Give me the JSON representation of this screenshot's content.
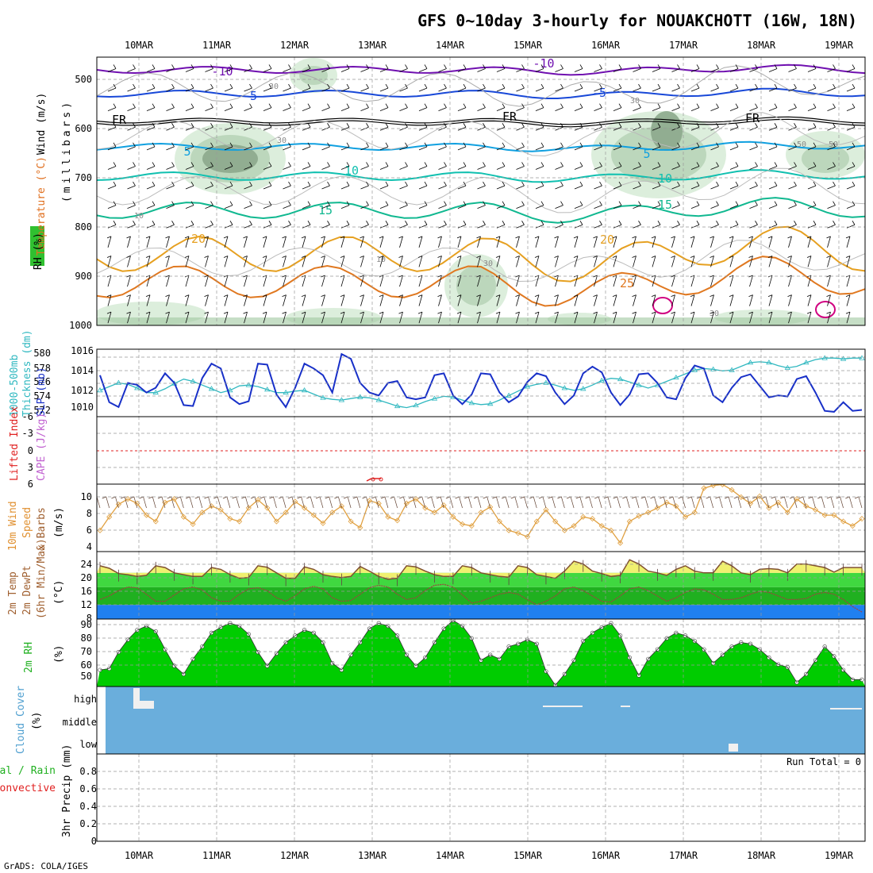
{
  "title": "GFS 0~10day 3-hourly for NOUAKCHOTT (16W, 18N)",
  "footer": "GrADS: COLA/IGES",
  "dates": [
    "10MAR",
    "11MAR",
    "12MAR",
    "13MAR",
    "14MAR",
    "15MAR",
    "16MAR",
    "17MAR",
    "18MAR",
    "19MAR"
  ],
  "colors": {
    "rh_light": "#d8ecd8",
    "rh_mid": "#b8d4b8",
    "rh_dark": "#8ca88c",
    "temp_warm": "#e6a020",
    "temp_hot": "#e07820",
    "temp_hotter": "#d00080",
    "temp_cold": "#7010b0",
    "temp_mid": "#1848d8",
    "temp_cool": "#10a0e0",
    "temp_teal": "#10c0b0",
    "slp": "#1830c8",
    "thickness": "#30b8c0",
    "wind10m": "#e0a040",
    "temp_fill_yellow": "#f0f070",
    "temp_fill_green": "#40d840",
    "temp_fill_dkgreen": "#20b020",
    "dewpt_fill": "#2080f0",
    "rh_green": "#00cc00",
    "cloud_blue": "#6aaedc",
    "li_red": "#e02020"
  },
  "panels": {
    "upper": {
      "ylabel_wind": "Wind (m/s)",
      "ylabel_temp": "Temperature (°C)",
      "ylabel_rh": "RH (%)",
      "ylabel_mb": "(millibars)",
      "levels": [
        "500",
        "600",
        "700",
        "800",
        "900",
        "1000"
      ],
      "contour_labels": {
        "t_m10": "-10",
        "t_m5": "-5",
        "t_fr": "FR",
        "t_5": "5",
        "t_10": "10",
        "t_15": "15",
        "t_20": "20",
        "t_25": "25",
        "rh_10": "10",
        "rh_30": "30",
        "rh_50": "50"
      }
    },
    "slp": {
      "ylabel_thick": "1000-500mb",
      "ylabel_thick2": "Thickness (dm)",
      "ylabel_slp": "SLP (mb)",
      "left_ticks": [
        "580",
        "578",
        "576",
        "574",
        "572"
      ],
      "right_ticks": [
        "1016",
        "1014",
        "1012",
        "1010"
      ]
    },
    "cape": {
      "ylabel_li": "Lifted Index",
      "ylabel_cape": "CAPE (J/kg)",
      "ticks": [
        "-6",
        "-3",
        "0",
        "3",
        "6"
      ]
    },
    "wind10m": {
      "ylabel1": "10m Wind",
      "ylabel2": "Speed",
      "ylabel3": "& Barbs",
      "ylabel4": "(m/s)",
      "ticks": [
        "10",
        "8",
        "6",
        "4"
      ]
    },
    "temp2m": {
      "ylabel1": "2m Temp",
      "ylabel2": "2m DewPt",
      "ylabel3": "(6hr Min/Max)",
      "ylabel4": "(°C)",
      "ticks": [
        "24",
        "20",
        "16",
        "12",
        "8"
      ]
    },
    "rh2m": {
      "ylabel1": "2m RH",
      "ylabel2": "(%)",
      "ticks": [
        "90",
        "80",
        "70",
        "60",
        "50"
      ]
    },
    "cloud": {
      "ylabel1": "Cloud Cover",
      "ylabel2": "(%)",
      "levels": [
        "high",
        "middle",
        "low"
      ]
    },
    "precip": {
      "ylabel1": "Total / Rain",
      "ylabel2": "Convective",
      "ylabel3": "3hr Precip (mm)",
      "run_total": "Run Total = 0",
      "ticks": [
        "0.8",
        "0.6",
        "0.4",
        "0.2",
        "0"
      ]
    }
  },
  "chart_data": [
    {
      "type": "line",
      "name": "SLP (mb)",
      "x_start": "10MAR 00Z",
      "x_step_hours": 3,
      "ylim": [
        1009,
        1016
      ],
      "values": [
        1013.3,
        1010.5,
        1010.0,
        1012.5,
        1012.3,
        1011.5,
        1012.0,
        1013.5,
        1012.5,
        1010.2,
        1010.1,
        1013.0,
        1014.5,
        1014.0,
        1011.0,
        1010.3,
        1010.6,
        1014.5,
        1014.4,
        1011.3,
        1010.0,
        1012.0,
        1014.5,
        1014.0,
        1013.3,
        1011.5,
        1015.5,
        1015.0,
        1012.5,
        1011.5,
        1011.2,
        1012.5,
        1012.7,
        1011.0,
        1010.8,
        1011.0,
        1013.3,
        1013.5,
        1011.2,
        1010.3,
        1011.3,
        1013.5,
        1013.4,
        1011.5,
        1010.5,
        1011.1,
        1012.6,
        1013.5,
        1013.2,
        1011.5,
        1010.3,
        1011.2,
        1013.5,
        1014.2,
        1013.6,
        1011.5,
        1010.2,
        1011.3,
        1013.4,
        1013.5,
        1012.5,
        1011.0,
        1010.8,
        1013.0,
        1014.3,
        1014.0,
        1011.2,
        1010.5,
        1012.0,
        1013.1,
        1013.4,
        1012.2,
        1011.0,
        1011.2,
        1011.1,
        1012.9,
        1013.2,
        1011.5,
        1009.6,
        1009.5,
        1010.5,
        1009.6,
        1009.7
      ]
    },
    {
      "type": "line",
      "name": "1000-500mb Thickness (dm)",
      "x_start": "10MAR 00Z",
      "x_step_hours": 3,
      "ylim": [
        571,
        580
      ],
      "values": [
        574.3,
        574.8,
        575.3,
        575.1,
        574.6,
        574.0,
        574.0,
        574.5,
        575.2,
        575.8,
        575.5,
        575.0,
        574.5,
        574.0,
        574.3,
        574.9,
        575.0,
        574.8,
        574.4,
        574.0,
        574.0,
        574.2,
        574.3,
        573.8,
        573.3,
        573.1,
        573.0,
        573.2,
        573.4,
        573.3,
        573.0,
        572.6,
        572.2,
        572.0,
        572.3,
        572.8,
        573.2,
        573.5,
        573.4,
        573.0,
        572.6,
        572.4,
        572.5,
        573.0,
        573.6,
        574.2,
        574.8,
        575.1,
        575.3,
        575.0,
        574.6,
        574.3,
        574.5,
        575.0,
        575.6,
        575.9,
        575.8,
        575.4,
        575.0,
        574.6,
        575.0,
        575.5,
        576.0,
        576.5,
        577.0,
        577.2,
        577.1,
        576.9,
        577.0,
        577.5,
        578.0,
        578.1,
        578.0,
        577.6,
        577.3,
        577.5,
        578.0,
        578.4,
        578.6,
        578.6,
        578.5,
        578.6,
        578.6
      ]
    },
    {
      "type": "line",
      "name": "10m Wind Speed (m/s)",
      "x_start": "10MAR 00Z",
      "x_step_hours": 3,
      "ylim": [
        3.5,
        11
      ],
      "values": [
        5.5,
        7.0,
        8.4,
        9.0,
        8.5,
        7.2,
        6.5,
        8.6,
        9.0,
        7.0,
        6.2,
        7.5,
        8.2,
        7.8,
        6.8,
        6.5,
        8.0,
        8.9,
        8.0,
        6.5,
        7.5,
        8.7,
        8.0,
        7.2,
        6.3,
        7.5,
        8.2,
        6.5,
        5.8,
        8.8,
        8.5,
        7.0,
        6.6,
        8.5,
        9.0,
        8.0,
        7.5,
        8.3,
        7.0,
        6.2,
        6.0,
        7.5,
        8.1,
        6.5,
        5.5,
        5.2,
        4.8,
        6.5,
        7.8,
        6.5,
        5.5,
        6.0,
        7.0,
        6.8,
        6.0,
        5.5,
        4.1,
        6.5,
        7.1,
        7.5,
        8.0,
        8.6,
        8.2,
        7.0,
        7.5,
        10.2,
        10.5,
        10.6,
        10.0,
        9.2,
        8.5,
        9.3,
        8.0,
        8.6,
        7.5,
        9.0,
        8.2,
        7.8,
        7.2,
        7.2,
        6.5,
        6.0,
        6.8
      ]
    },
    {
      "type": "area",
      "name": "2m Temp (°C)",
      "x_start": "10MAR 00Z",
      "x_step_hours": 3,
      "ylim": [
        7,
        26
      ],
      "values": [
        22.0,
        21.3,
        19.8,
        19.5,
        19.0,
        19.3,
        22.0,
        21.5,
        20.0,
        19.5,
        19.0,
        19.0,
        21.5,
        21.0,
        19.5,
        18.5,
        18.7,
        22.0,
        21.6,
        20.0,
        18.5,
        18.5,
        21.7,
        21.0,
        19.5,
        19.0,
        18.7,
        19.0,
        21.8,
        20.5,
        19.0,
        18.2,
        18.5,
        22.0,
        21.7,
        20.5,
        19.5,
        19.0,
        19.0,
        22.0,
        21.5,
        20.0,
        19.5,
        19.0,
        18.8,
        22.0,
        21.5,
        19.5,
        19.0,
        18.5,
        20.5,
        23.3,
        22.5,
        20.5,
        19.8,
        19.0,
        19.3,
        23.7,
        22.5,
        20.5,
        20.0,
        19.3,
        21.0,
        22.0,
        20.5,
        20.0,
        20.0,
        23.3,
        22.0,
        20.0,
        19.5,
        21.0,
        21.2,
        21.0,
        20.0,
        22.5,
        22.5,
        22.0,
        21.5,
        20.2,
        21.5,
        21.5,
        21.5
      ]
    },
    {
      "type": "line",
      "name": "2m DewPt (°C)",
      "x_start": "10MAR 00Z",
      "x_step_hours": 3,
      "ylim": [
        7,
        26
      ],
      "values": [
        12.5,
        13.5,
        15.0,
        16.0,
        15.8,
        14.0,
        12.0,
        12.0,
        13.8,
        15.5,
        16.0,
        15.2,
        13.0,
        12.0,
        12.0,
        14.0,
        15.5,
        15.8,
        15.0,
        13.0,
        12.0,
        13.5,
        15.5,
        16.2,
        15.5,
        13.0,
        12.0,
        12.2,
        14.0,
        15.8,
        16.5,
        16.0,
        14.0,
        12.5,
        13.0,
        15.0,
        16.5,
        16.8,
        16.0,
        13.8,
        11.5,
        12.0,
        13.0,
        14.0,
        14.5,
        14.0,
        12.5,
        11.0,
        12.0,
        13.5,
        15.5,
        16.0,
        15.0,
        13.5,
        12.0,
        11.8,
        13.5,
        15.5,
        16.0,
        15.0,
        13.5,
        12.0,
        13.0,
        14.5,
        15.5,
        15.2,
        14.0,
        12.5,
        12.5,
        13.0,
        14.0,
        14.8,
        14.5,
        13.5,
        12.5,
        12.5,
        12.8,
        14.0,
        14.5,
        14.0,
        12.5,
        10.5,
        9.0
      ]
    },
    {
      "type": "area",
      "name": "2m RH (%)",
      "x_start": "10MAR 00Z",
      "x_step_hours": 3,
      "ylim": [
        43,
        92
      ],
      "values": [
        55,
        56,
        68,
        77,
        84,
        87,
        83,
        70,
        58,
        52,
        63,
        72,
        82,
        86,
        89,
        87,
        81,
        68,
        58,
        67,
        75,
        80,
        84,
        82,
        75,
        60,
        55,
        66,
        75,
        85,
        89,
        87,
        80,
        66,
        58,
        64,
        75,
        85,
        91,
        87,
        78,
        62,
        66,
        63,
        72,
        74,
        77,
        74,
        54,
        44,
        52,
        62,
        76,
        82,
        86,
        89,
        80,
        64,
        51,
        63,
        70,
        78,
        82,
        80,
        76,
        70,
        60,
        66,
        72,
        75,
        74,
        70,
        64,
        59,
        57,
        46,
        52,
        62,
        72,
        65,
        55,
        48,
        48
      ]
    },
    {
      "type": "heatmap",
      "name": "Cloud Cover (%)",
      "levels": [
        "high",
        "middle",
        "low"
      ],
      "note": "cloud cover near 0% throughout; small high-cloud patches near 10MAR, 15MAR, 16MAR and low-cloud patch near 17MAR 18Z"
    },
    {
      "type": "bar",
      "name": "3hr Precip (mm)",
      "ylim": [
        0,
        1
      ],
      "values": []
    }
  ]
}
